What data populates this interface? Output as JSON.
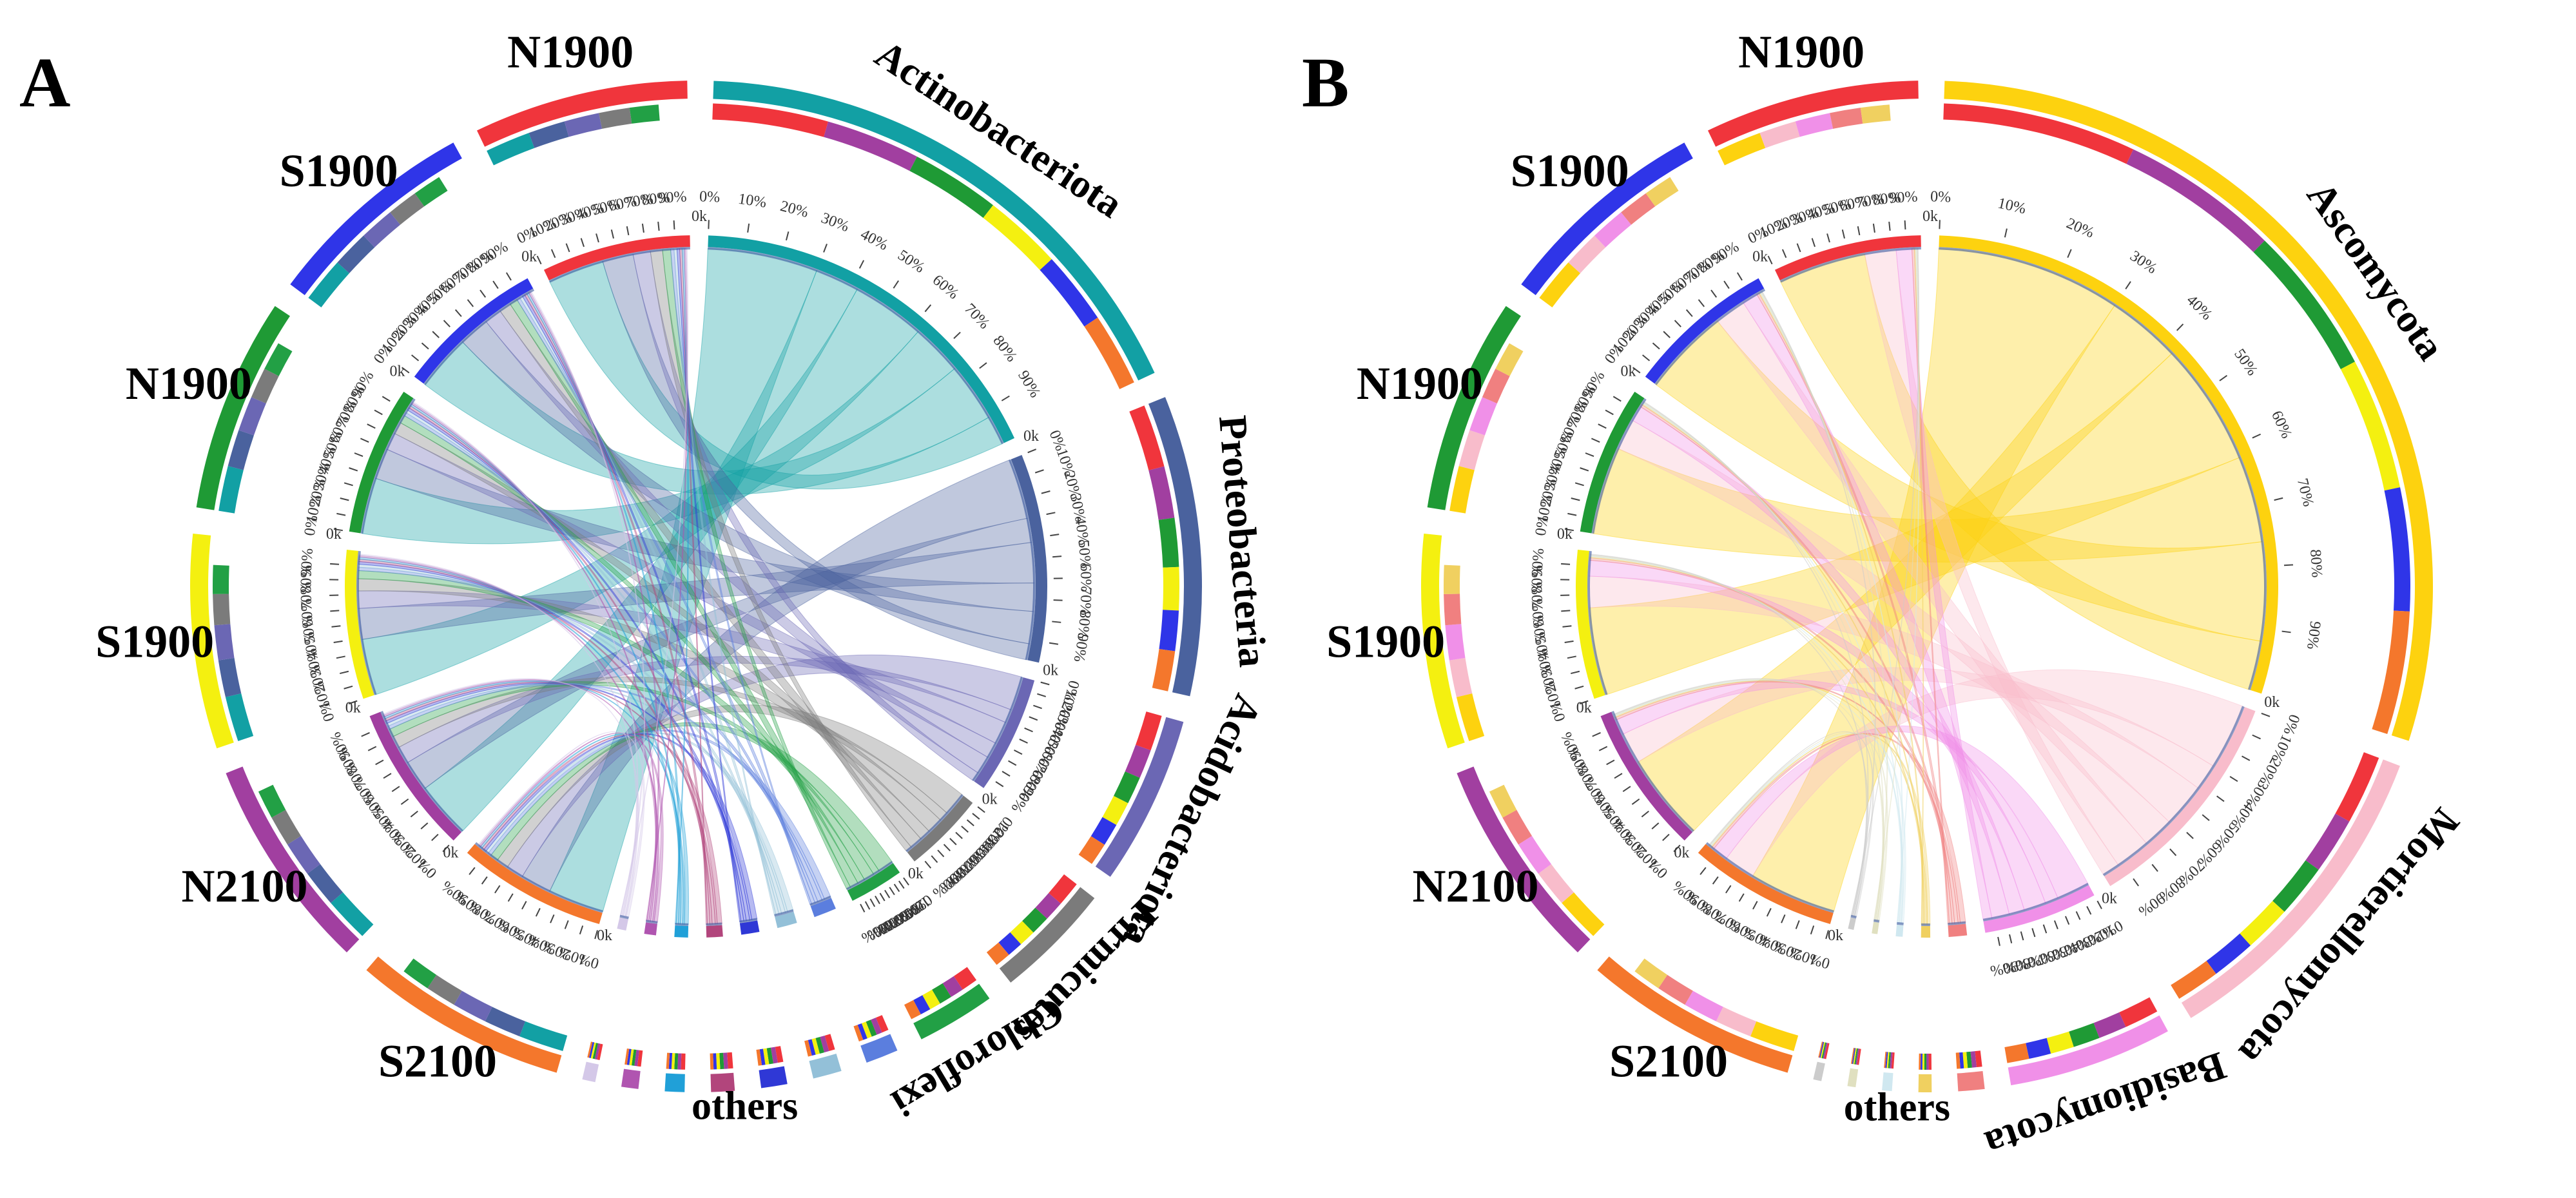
{
  "chart_data": [
    {
      "type": "chord",
      "panel": "A",
      "samples": [
        {
          "label": "S2100",
          "color": "#f4772c",
          "weight": 1
        },
        {
          "label": "N2100",
          "color": "#a13fa0",
          "weight": 1
        },
        {
          "label": "S1900",
          "color": "#f4f010",
          "weight": 1
        },
        {
          "label": "N1900",
          "color": "#1f9a35",
          "weight": 1
        },
        {
          "label": "S1900",
          "color": "#2f35e8",
          "weight": 1
        },
        {
          "label": "N1900",
          "color": "#f0353c",
          "weight": 1
        }
      ],
      "taxa": [
        {
          "label": "Actinobacteriota",
          "color": "#12a0a4",
          "weight": 4.2
        },
        {
          "label": "Proteobacteria",
          "color": "#4a629e",
          "weight": 2.3
        },
        {
          "label": "Acidobacteriota",
          "color": "#6b67b4",
          "weight": 1.3
        },
        {
          "label": "Firmicutes",
          "color": "#7b7b7b",
          "weight": 0.9
        },
        {
          "label": "Chloroflexi",
          "color": "#22a045",
          "weight": 0.6
        },
        {
          "label": "",
          "color": "#5b7ede",
          "weight": 0.25
        },
        {
          "label": "",
          "color": "#93c0d8",
          "weight": 0.22
        },
        {
          "label": "",
          "color": "#2f38d6",
          "weight": 0.2
        },
        {
          "label": "",
          "color": "#b2457c",
          "weight": 0.18
        },
        {
          "label": "",
          "color": "#20a0d8",
          "weight": 0.15
        },
        {
          "label": "",
          "color": "#b055b0",
          "weight": 0.13
        },
        {
          "label": "",
          "color": "#d4c8e8",
          "weight": 0.1
        }
      ],
      "others_label": "others",
      "tick_labels": [
        "0%",
        "10%",
        "20%",
        "30%",
        "40%",
        "50%",
        "60%",
        "70%",
        "80%",
        "90%"
      ],
      "zero_label": "0k"
    },
    {
      "type": "chord",
      "panel": "B",
      "samples": [
        {
          "label": "S2100",
          "color": "#f4772c",
          "weight": 1
        },
        {
          "label": "N2100",
          "color": "#a13fa0",
          "weight": 1
        },
        {
          "label": "S1900",
          "color": "#f4f010",
          "weight": 1
        },
        {
          "label": "N1900",
          "color": "#1f9a35",
          "weight": 1
        },
        {
          "label": "S1900",
          "color": "#2f35e8",
          "weight": 1
        },
        {
          "label": "N1900",
          "color": "#f0353c",
          "weight": 1
        }
      ],
      "taxa": [
        {
          "label": "Ascomycota",
          "color": "#fdd20f",
          "weight": 5.6
        },
        {
          "label": "Mortierellomycota",
          "color": "#f8bccb",
          "weight": 2.0
        },
        {
          "label": "Basidiomycota",
          "color": "#f090e8",
          "weight": 1.0
        },
        {
          "label": "",
          "color": "#f08080",
          "weight": 0.16
        },
        {
          "label": "",
          "color": "#f0d060",
          "weight": 0.08
        },
        {
          "label": "",
          "color": "#d0e8f0",
          "weight": 0.06
        },
        {
          "label": "",
          "color": "#e0e0c0",
          "weight": 0.05
        },
        {
          "label": "",
          "color": "#cccccc",
          "weight": 0.05
        }
      ],
      "others_label": "others",
      "tick_labels": [
        "0%",
        "10%",
        "20%",
        "30%",
        "40%",
        "50%",
        "60%",
        "70%",
        "80%",
        "90%"
      ],
      "zero_label": "0k"
    }
  ]
}
